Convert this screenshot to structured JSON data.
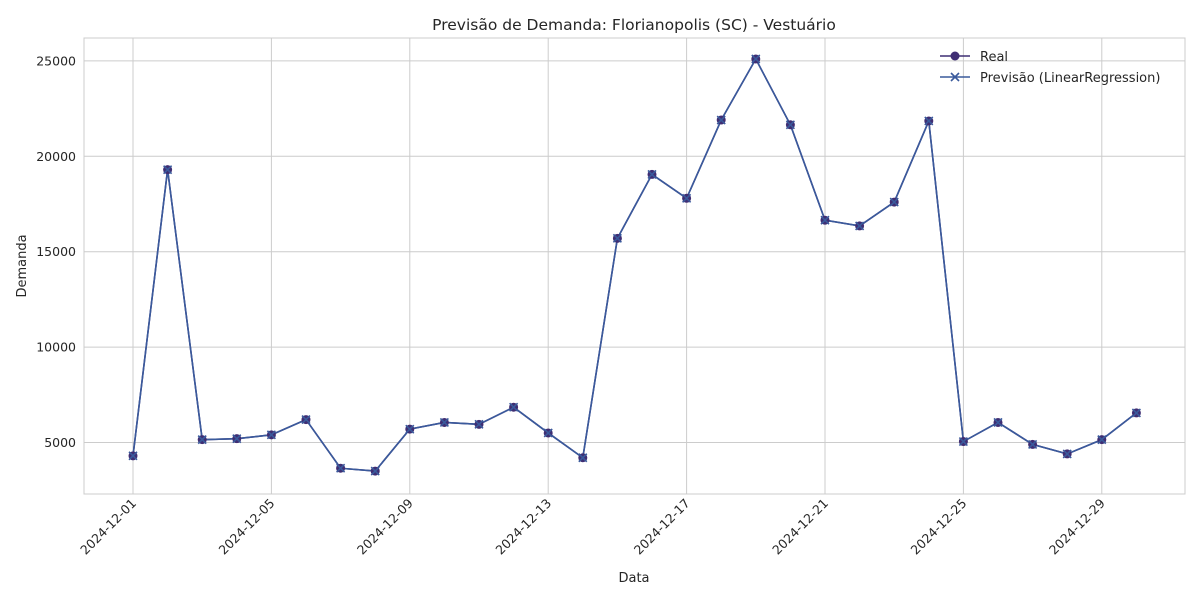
{
  "chart_data": {
    "type": "line",
    "title": "Previsão de Demanda: Florianopolis (SC) - Vestuário",
    "xlabel": "Data",
    "ylabel": "Demanda",
    "ylim": [
      2300,
      26200
    ],
    "x": [
      "2024-12-01",
      "2024-12-02",
      "2024-12-03",
      "2024-12-04",
      "2024-12-05",
      "2024-12-06",
      "2024-12-07",
      "2024-12-08",
      "2024-12-09",
      "2024-12-10",
      "2024-12-11",
      "2024-12-12",
      "2024-12-13",
      "2024-12-14",
      "2024-12-15",
      "2024-12-16",
      "2024-12-17",
      "2024-12-18",
      "2024-12-19",
      "2024-12-20",
      "2024-12-21",
      "2024-12-22",
      "2024-12-23",
      "2024-12-24",
      "2024-12-25",
      "2024-12-26",
      "2024-12-27",
      "2024-12-28",
      "2024-12-29",
      "2024-12-30"
    ],
    "xticks": [
      "2024-12-01",
      "2024-12-05",
      "2024-12-09",
      "2024-12-13",
      "2024-12-17",
      "2024-12-21",
      "2024-12-25",
      "2024-12-29"
    ],
    "yticks": [
      5000,
      10000,
      15000,
      20000,
      25000
    ],
    "series": [
      {
        "name": "Real",
        "color": "#3f2e73",
        "marker": "circle",
        "values": [
          4300,
          19300,
          5150,
          5200,
          5400,
          6200,
          3650,
          3500,
          5700,
          6050,
          5950,
          6850,
          5500,
          4200,
          15700,
          19050,
          17800,
          21900,
          25100,
          21650,
          16650,
          16350,
          17600,
          21850,
          5050,
          6050,
          4900,
          4400,
          5150,
          6550
        ]
      },
      {
        "name": "Previsão (LinearRegression)",
        "color": "#3a5a9c",
        "marker": "x",
        "values": [
          4300,
          19300,
          5150,
          5200,
          5400,
          6200,
          3650,
          3500,
          5700,
          6050,
          5950,
          6850,
          5500,
          4200,
          15700,
          19050,
          17800,
          21900,
          25100,
          21650,
          16650,
          16350,
          17600,
          21850,
          5050,
          6050,
          4900,
          4400,
          5150,
          6550
        ]
      }
    ],
    "grid": true,
    "legend_position": "top-right"
  }
}
